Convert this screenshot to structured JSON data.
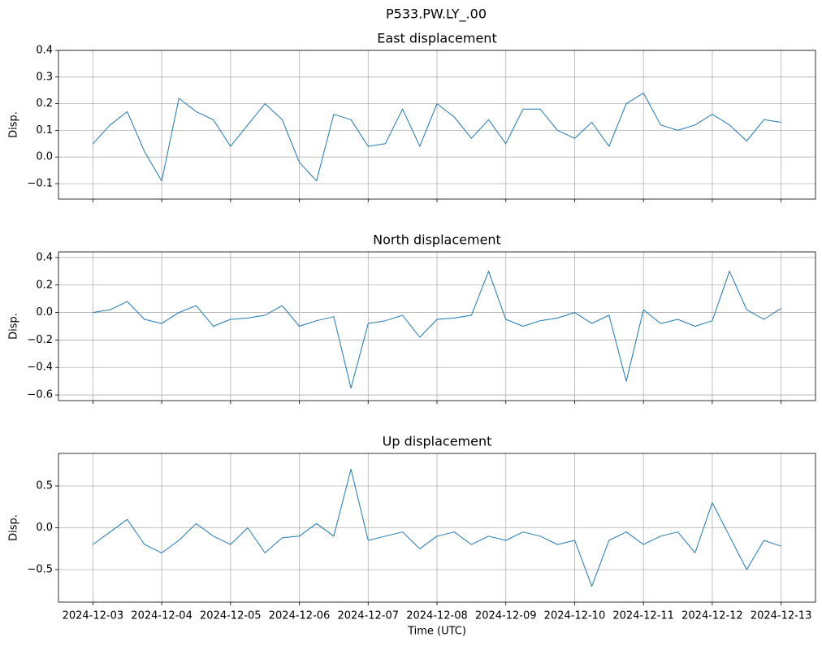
{
  "title": "P533.PW.LY_.00",
  "sharex": true,
  "chart_data": [
    {
      "type": "line",
      "title": "East displacement",
      "ylabel": "Disp.",
      "grid": true,
      "x": [
        "2024-12-03T00:00",
        "2024-12-03T06:00",
        "2024-12-03T12:00",
        "2024-12-03T18:00",
        "2024-12-04T00:00",
        "2024-12-04T06:00",
        "2024-12-04T12:00",
        "2024-12-04T18:00",
        "2024-12-05T00:00",
        "2024-12-05T06:00",
        "2024-12-05T12:00",
        "2024-12-05T18:00",
        "2024-12-06T00:00",
        "2024-12-06T06:00",
        "2024-12-06T12:00",
        "2024-12-06T18:00",
        "2024-12-07T00:00",
        "2024-12-07T06:00",
        "2024-12-07T12:00",
        "2024-12-07T18:00",
        "2024-12-08T00:00",
        "2024-12-08T06:00",
        "2024-12-08T12:00",
        "2024-12-08T18:00",
        "2024-12-09T00:00",
        "2024-12-09T06:00",
        "2024-12-09T12:00",
        "2024-12-09T18:00",
        "2024-12-10T00:00",
        "2024-12-10T06:00",
        "2024-12-10T12:00",
        "2024-12-10T18:00",
        "2024-12-11T00:00",
        "2024-12-11T06:00",
        "2024-12-11T12:00",
        "2024-12-11T18:00",
        "2024-12-12T00:00",
        "2024-12-12T06:00",
        "2024-12-12T12:00",
        "2024-12-12T18:00",
        "2024-12-13T00:00"
      ],
      "series": [
        {
          "color": "#1f77b4",
          "values": [
            0.05,
            0.12,
            0.17,
            0.02,
            -0.09,
            0.22,
            0.17,
            0.14,
            0.04,
            0.12,
            0.2,
            0.14,
            -0.02,
            -0.09,
            0.16,
            0.14,
            0.04,
            0.05,
            0.18,
            0.04,
            0.2,
            0.15,
            0.07,
            0.14,
            0.05,
            0.18,
            0.18,
            0.1,
            0.07,
            0.13,
            0.04,
            0.2,
            0.24,
            0.12,
            0.1,
            0.12,
            0.16,
            0.12,
            0.06,
            0.14,
            0.13
          ]
        }
      ],
      "xlim": [
        "2024-12-02T12:00",
        "2024-12-13T12:00"
      ],
      "ylim": [
        -0.158,
        0.4
      ],
      "yticks": [
        {
          "value": -0.1,
          "label": "−0.1"
        },
        {
          "value": 0,
          "label": "0.0"
        },
        0.1,
        0.2,
        0.3,
        0.4
      ]
    },
    {
      "type": "line",
      "title": "North displacement",
      "ylabel": "Disp.",
      "grid": true,
      "x": [
        "2024-12-03T00:00",
        "2024-12-03T06:00",
        "2024-12-03T12:00",
        "2024-12-03T18:00",
        "2024-12-04T00:00",
        "2024-12-04T06:00",
        "2024-12-04T12:00",
        "2024-12-04T18:00",
        "2024-12-05T00:00",
        "2024-12-05T06:00",
        "2024-12-05T12:00",
        "2024-12-05T18:00",
        "2024-12-06T00:00",
        "2024-12-06T06:00",
        "2024-12-06T12:00",
        "2024-12-06T18:00",
        "2024-12-07T00:00",
        "2024-12-07T06:00",
        "2024-12-07T12:00",
        "2024-12-07T18:00",
        "2024-12-08T00:00",
        "2024-12-08T06:00",
        "2024-12-08T12:00",
        "2024-12-08T18:00",
        "2024-12-09T00:00",
        "2024-12-09T06:00",
        "2024-12-09T12:00",
        "2024-12-09T18:00",
        "2024-12-10T00:00",
        "2024-12-10T06:00",
        "2024-12-10T12:00",
        "2024-12-10T18:00",
        "2024-12-11T00:00",
        "2024-12-11T06:00",
        "2024-12-11T12:00",
        "2024-12-11T18:00",
        "2024-12-12T00:00",
        "2024-12-12T06:00",
        "2024-12-12T12:00",
        "2024-12-12T18:00",
        "2024-12-13T00:00"
      ],
      "series": [
        {
          "color": "#1f77b4",
          "values": [
            0,
            0.02,
            0.08,
            -0.05,
            -0.08,
            0.0,
            0.05,
            -0.1,
            -0.05,
            -0.04,
            -0.02,
            0.05,
            -0.1,
            -0.06,
            -0.03,
            -0.55,
            -0.08,
            -0.06,
            -0.02,
            -0.18,
            -0.05,
            -0.04,
            -0.02,
            0.3,
            -0.05,
            -0.1,
            -0.06,
            -0.04,
            0.0,
            -0.08,
            -0.02,
            -0.5,
            0.02,
            -0.08,
            -0.05,
            -0.1,
            -0.06,
            0.3,
            0.02,
            -0.05,
            0.03
          ]
        }
      ],
      "xlim": [
        "2024-12-02T12:00",
        "2024-12-13T12:00"
      ],
      "ylim": [
        -0.641,
        0.441
      ],
      "yticks": [
        {
          "value": -0.6,
          "label": "−0.6"
        },
        {
          "value": -0.4,
          "label": "−0.4"
        },
        {
          "value": -0.2,
          "label": "−0.2"
        },
        {
          "value": 0,
          "label": "0.0"
        },
        0.2,
        0.4
      ]
    },
    {
      "type": "line",
      "title": "Up displacement",
      "ylabel": "Disp.",
      "xlabel": "Time (UTC)",
      "grid": true,
      "x": [
        "2024-12-03T00:00",
        "2024-12-03T06:00",
        "2024-12-03T12:00",
        "2024-12-03T18:00",
        "2024-12-04T00:00",
        "2024-12-04T06:00",
        "2024-12-04T12:00",
        "2024-12-04T18:00",
        "2024-12-05T00:00",
        "2024-12-05T06:00",
        "2024-12-05T12:00",
        "2024-12-05T18:00",
        "2024-12-06T00:00",
        "2024-12-06T06:00",
        "2024-12-06T12:00",
        "2024-12-06T18:00",
        "2024-12-07T00:00",
        "2024-12-07T06:00",
        "2024-12-07T12:00",
        "2024-12-07T18:00",
        "2024-12-08T00:00",
        "2024-12-08T06:00",
        "2024-12-08T12:00",
        "2024-12-08T18:00",
        "2024-12-09T00:00",
        "2024-12-09T06:00",
        "2024-12-09T12:00",
        "2024-12-09T18:00",
        "2024-12-10T00:00",
        "2024-12-10T06:00",
        "2024-12-10T12:00",
        "2024-12-10T18:00",
        "2024-12-11T00:00",
        "2024-12-11T06:00",
        "2024-12-11T12:00",
        "2024-12-11T18:00",
        "2024-12-12T00:00",
        "2024-12-12T06:00",
        "2024-12-12T12:00",
        "2024-12-12T18:00",
        "2024-12-13T00:00"
      ],
      "series": [
        {
          "color": "#1f77b4",
          "values": [
            -0.2,
            -0.05,
            0.1,
            -0.2,
            -0.3,
            -0.15,
            0.05,
            -0.1,
            -0.2,
            0.0,
            -0.3,
            -0.12,
            -0.1,
            0.05,
            -0.1,
            0.7,
            -0.15,
            -0.1,
            -0.05,
            -0.25,
            -0.1,
            -0.05,
            -0.2,
            -0.1,
            -0.15,
            -0.05,
            -0.1,
            -0.2,
            -0.15,
            -0.7,
            -0.15,
            -0.05,
            -0.2,
            -0.1,
            -0.05,
            -0.3,
            0.3,
            -0.1,
            -0.5,
            -0.15,
            -0.22
          ]
        }
      ],
      "xlim": [
        "2024-12-02T12:00",
        "2024-12-13T12:00"
      ],
      "xticks": [
        "2024-12-03",
        "2024-12-04",
        "2024-12-05",
        "2024-12-06",
        "2024-12-07",
        "2024-12-08",
        "2024-12-09",
        "2024-12-10",
        "2024-12-11",
        "2024-12-12",
        "2024-12-13"
      ],
      "ylim": [
        -0.888,
        0.888
      ],
      "yticks": [
        {
          "value": -0.5,
          "label": "−0.5"
        },
        {
          "value": 0,
          "label": "0.0"
        },
        0.5
      ]
    }
  ]
}
